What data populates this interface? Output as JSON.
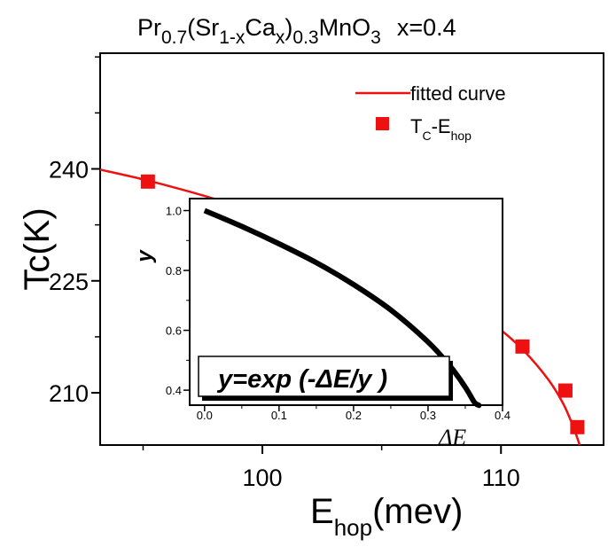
{
  "chart_data": [
    {
      "type": "scatter",
      "title_parts": {
        "pr": "Pr",
        "pr_sub": "0.7",
        "mid": "(Sr",
        "mid_sub": "1-x",
        "ca": "Ca",
        "ca_sub": "x",
        "close": ")",
        "close_sub": "0.3",
        "rest": "MnO",
        "rest_sub": "3",
        "x_eq": "x=0.4"
      },
      "xlabel": {
        "main": "E",
        "sub": "hop",
        "unit": "(mev)"
      },
      "ylabel": "Tc(K)",
      "xlim": [
        93.2,
        114.3
      ],
      "ylim": [
        203.0,
        255.5
      ],
      "x_ticks": [
        100,
        110
      ],
      "y_ticks": [
        210,
        225,
        240
      ],
      "grid": false,
      "legend_placement": "top-right",
      "legend": {
        "line_label": "fitted curve",
        "marker_label": {
          "main": "T",
          "sub1": "C",
          "mid": "-E",
          "sub2": "hop"
        }
      },
      "colors": {
        "series": "#ee1111",
        "axis": "#000000"
      },
      "series": [
        {
          "name": "fitted curve",
          "type": "line",
          "x": [
            93.2,
            95,
            97,
            99,
            101,
            103,
            105,
            107,
            108.5,
            110,
            111,
            112,
            112.6,
            113,
            113.3
          ],
          "y": [
            239.9,
            238.6,
            236.9,
            235.0,
            232.9,
            230.5,
            227.8,
            224.6,
            221.8,
            218.4,
            215.5,
            211.7,
            208.6,
            205.7,
            203.0
          ]
        },
        {
          "name": "TC-Ehop",
          "type": "scatter",
          "x": [
            95.2,
            100.4,
            104.2,
            106.6,
            108.7,
            110.9,
            112.7,
            113.2
          ],
          "y": [
            238.3,
            234.3,
            229.3,
            225.0,
            221.0,
            216.2,
            210.3,
            205.4
          ]
        }
      ]
    },
    {
      "type": "line",
      "xlabel": "ΔE",
      "ylabel": "y",
      "xlim": [
        -0.02,
        0.4
      ],
      "ylim": [
        0.35,
        1.04
      ],
      "x_ticks": [
        0.0,
        0.1,
        0.2,
        0.3,
        0.4
      ],
      "x_tick_labels": [
        "0.0",
        "0.1",
        "0.2",
        "0.3",
        "0.4"
      ],
      "y_ticks": [
        0.4,
        0.6,
        0.8,
        1.0
      ],
      "y_tick_labels": [
        "0.4",
        "0.6",
        "0.8",
        "1.0"
      ],
      "annotation": "y=exp (-ΔE/y )",
      "colors": {
        "curve": "#000000"
      },
      "series": [
        {
          "name": "",
          "x": [
            0.0,
            0.05,
            0.1,
            0.15,
            0.2,
            0.25,
            0.3,
            0.33,
            0.35,
            0.3621,
            0.3679,
            0.3679
          ],
          "y": [
            1.0,
            0.947,
            0.889,
            0.826,
            0.753,
            0.668,
            0.561,
            0.479,
            0.41,
            0.36,
            0.35,
            0.35
          ]
        }
      ]
    }
  ]
}
